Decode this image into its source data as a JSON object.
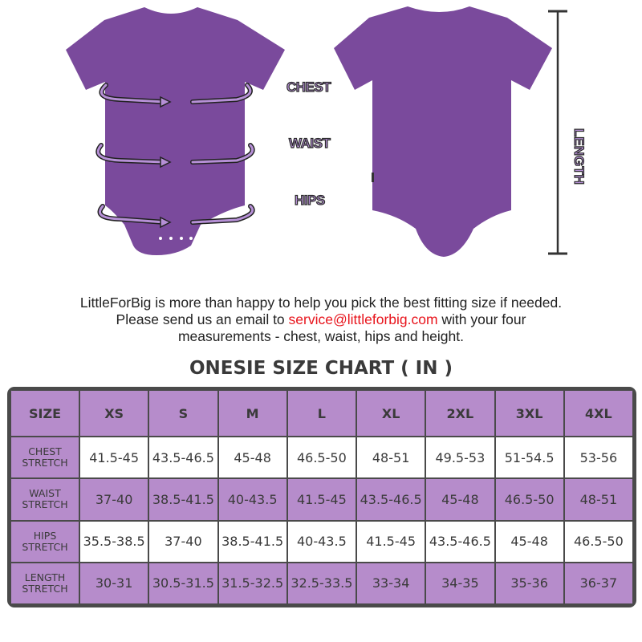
{
  "labels": {
    "chest": "CHEST",
    "waist": "WAIST",
    "hips": "HIPS",
    "length": "LENGTH"
  },
  "intro": {
    "line1": "LittleForBig is more than happy to help you pick the best fitting size if needed.",
    "line2_pre": "Please send us an email to ",
    "email": "service@littleforbig.com",
    "line2_post": " with your four",
    "line3": "measurements - chest, waist, hips and height."
  },
  "chart_title": "ONESIE SIZE CHART ( IN )",
  "colors": {
    "garment": "#7a4a9c",
    "table_purple": "#b68ccb",
    "email": "#e8141c",
    "border": "#4a4a4a"
  },
  "table": {
    "header": [
      "SIZE",
      "XS",
      "S",
      "M",
      "L",
      "XL",
      "2XL",
      "3XL",
      "4XL"
    ],
    "rows": [
      {
        "label1": "CHEST",
        "label2": "STRETCH",
        "values": [
          "41.5-45",
          "43.5-46.5",
          "45-48",
          "46.5-50",
          "48-51",
          "49.5-53",
          "51-54.5",
          "53-56"
        ]
      },
      {
        "label1": "WAIST",
        "label2": "STRETCH",
        "values": [
          "37-40",
          "38.5-41.5",
          "40-43.5",
          "41.5-45",
          "43.5-46.5",
          "45-48",
          "46.5-50",
          "48-51"
        ]
      },
      {
        "label1": "HIPS",
        "label2": "STRETCH",
        "values": [
          "35.5-38.5",
          "37-40",
          "38.5-41.5",
          "40-43.5",
          "41.5-45",
          "43.5-46.5",
          "45-48",
          "46.5-50"
        ]
      },
      {
        "label1": "LENGTH",
        "label2": "STRETCH",
        "values": [
          "30-31",
          "30.5-31.5",
          "31.5-32.5",
          "32.5-33.5",
          "33-34",
          "34-35",
          "35-36",
          "36-37"
        ]
      }
    ]
  }
}
